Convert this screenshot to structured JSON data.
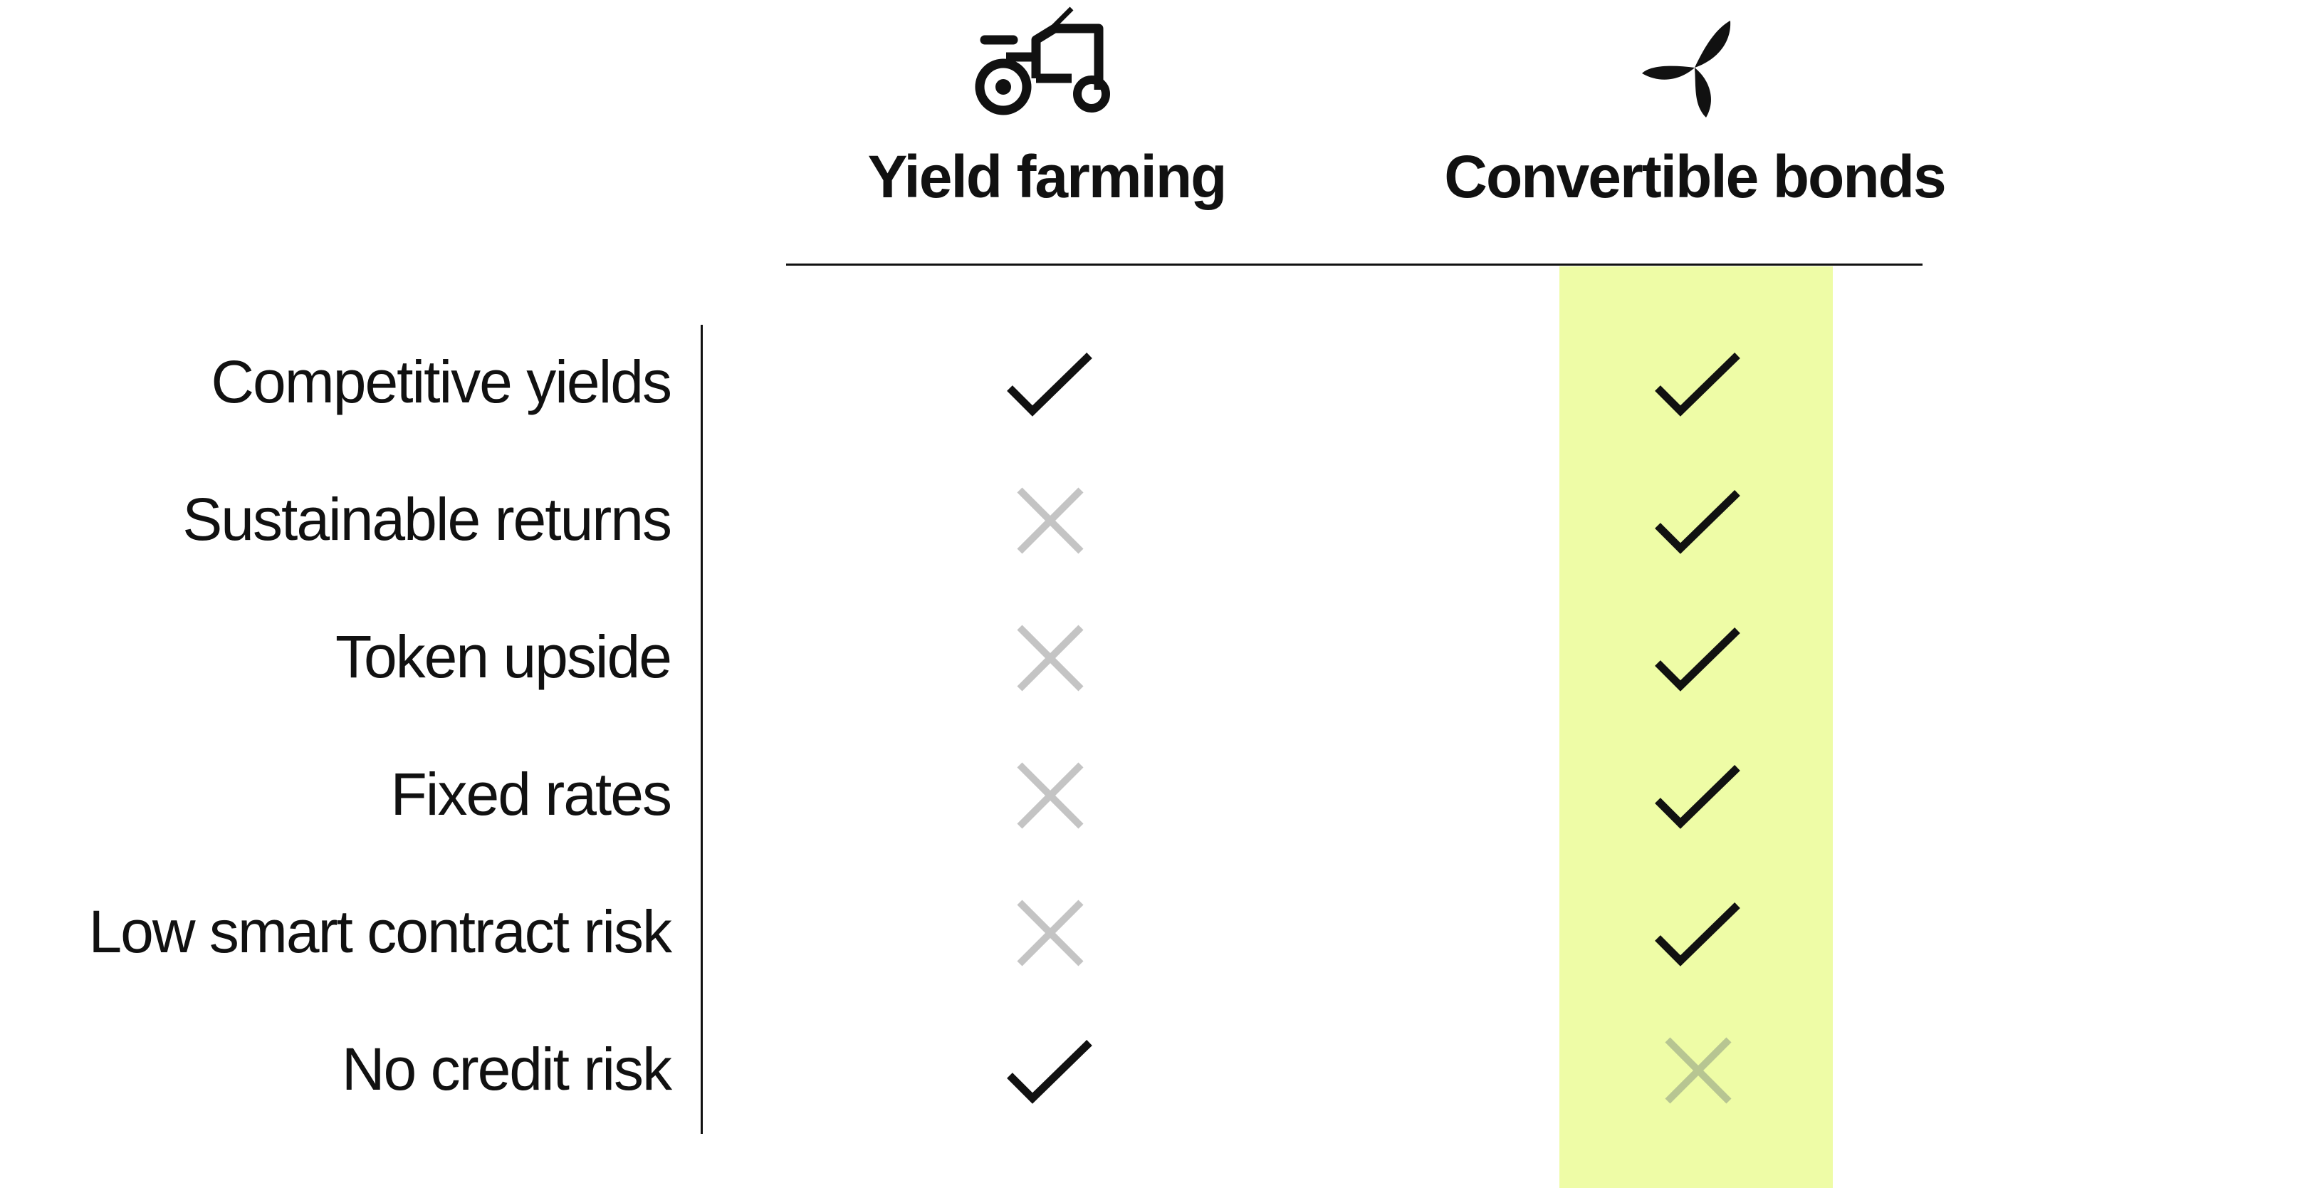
{
  "columns": [
    {
      "title": "Yield farming",
      "icon": "tractor-icon"
    },
    {
      "title": "Convertible bonds",
      "icon": "three-leaf-icon",
      "highlight_color": "#eefca6"
    }
  ],
  "rows": [
    {
      "label": "Competitive yields",
      "yield_farming": "check",
      "convertible_bonds": "check"
    },
    {
      "label": "Sustainable returns",
      "yield_farming": "cross",
      "convertible_bonds": "check"
    },
    {
      "label": "Token upside",
      "yield_farming": "cross",
      "convertible_bonds": "check"
    },
    {
      "label": "Fixed rates",
      "yield_farming": "cross",
      "convertible_bonds": "check"
    },
    {
      "label": "Low smart contract risk",
      "yield_farming": "cross",
      "convertible_bonds": "check"
    },
    {
      "label": "No credit risk",
      "yield_farming": "check",
      "convertible_bonds": "cross"
    }
  ],
  "colors": {
    "check": "#111111",
    "cross": "#c4c4c4",
    "cross_on_highlight": "#b7c592",
    "highlight": "#eefca6"
  }
}
